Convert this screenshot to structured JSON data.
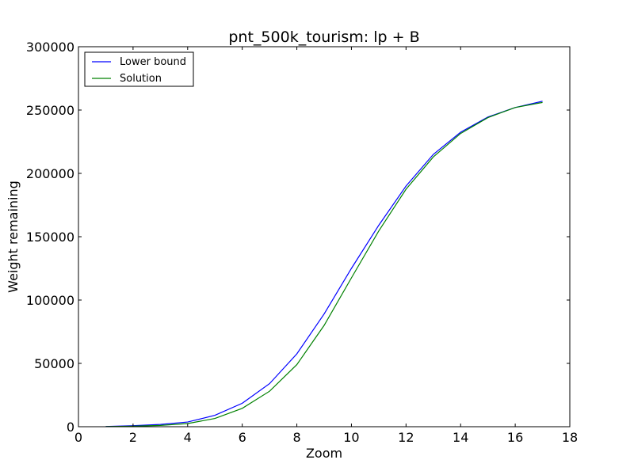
{
  "chart_data": {
    "type": "line",
    "title": "pnt_500k_tourism: lp + B",
    "xlabel": "Zoom",
    "ylabel": "Weight remaining",
    "xlim": [
      0,
      18
    ],
    "ylim": [
      0,
      300000
    ],
    "xticks": [
      "0",
      "2",
      "4",
      "6",
      "8",
      "10",
      "12",
      "14",
      "16",
      "18"
    ],
    "yticks": [
      "0",
      "50000",
      "100000",
      "150000",
      "200000",
      "250000",
      "300000"
    ],
    "grid": false,
    "legend_position": "top-left",
    "x": [
      1,
      2,
      3,
      4,
      5,
      6,
      7,
      8,
      9,
      10,
      11,
      12,
      13,
      14,
      15,
      16,
      17
    ],
    "series": [
      {
        "name": "Lower bound",
        "color": "#0000ff",
        "values": [
          200,
          800,
          1800,
          3700,
          9000,
          18500,
          34000,
          57500,
          89000,
          125000,
          159000,
          190000,
          215000,
          232500,
          244500,
          252000,
          257000
        ]
      },
      {
        "name": "Solution",
        "color": "#008000",
        "values": [
          100,
          400,
          1000,
          2500,
          6500,
          14500,
          28000,
          49000,
          80000,
          117500,
          154500,
          187500,
          213000,
          231500,
          244000,
          252000,
          256000
        ]
      }
    ]
  }
}
